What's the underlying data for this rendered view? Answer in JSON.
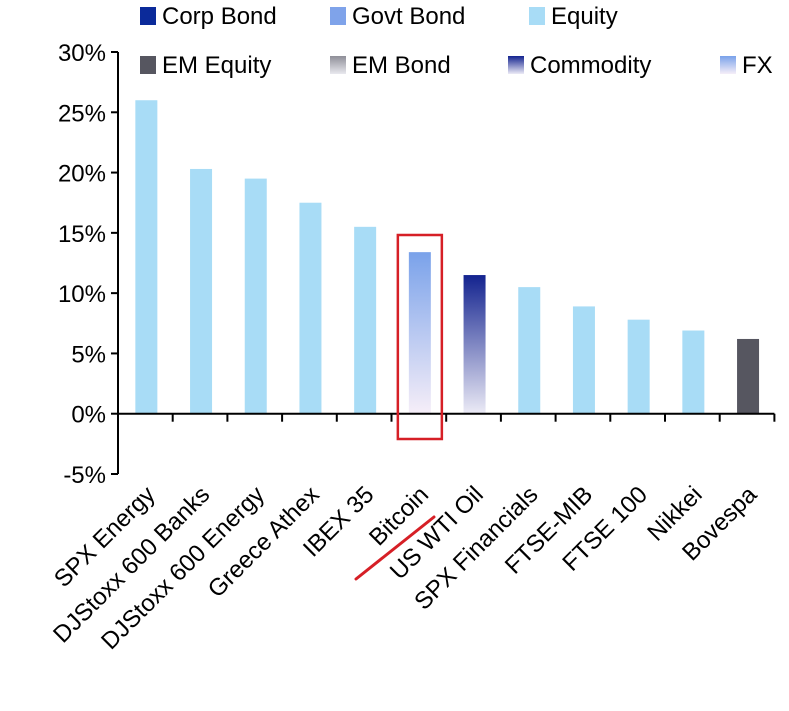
{
  "chart_data": {
    "type": "bar",
    "categories": [
      "SPX Energy",
      "DJStoxx 600 Banks",
      "DJStoxx 600 Energy",
      "Greece Athex",
      "IBEX 35",
      "Bitcoin",
      "US WTI Oil",
      "SPX Financials",
      "FTSE-MIB",
      "FTSE 100",
      "Nikkei",
      "Bovespa"
    ],
    "values": [
      26.0,
      20.3,
      19.5,
      17.5,
      15.5,
      13.4,
      11.5,
      10.5,
      8.9,
      7.8,
      6.9,
      6.2
    ],
    "asset_classes": [
      "Equity",
      "Equity",
      "Equity",
      "Equity",
      "Equity",
      "FX",
      "Commodity",
      "Equity",
      "Equity",
      "Equity",
      "Equity",
      "EM Equity"
    ],
    "ylim": [
      -5,
      30
    ],
    "yticks": [
      30,
      25,
      20,
      15,
      10,
      5,
      0,
      -5
    ],
    "ytick_format": "%",
    "legend": [
      {
        "name": "Corp Bond",
        "style": "solid",
        "color": "#0b2a9a"
      },
      {
        "name": "Govt Bond",
        "style": "solid",
        "color": "#7fa3ea"
      },
      {
        "name": "Equity",
        "style": "solid",
        "color": "#a8dcf6"
      },
      {
        "name": "EM Equity",
        "style": "solid",
        "color": "#565660"
      },
      {
        "name": "EM Bond",
        "style": "gradient",
        "color_top": "#8e8e98",
        "color_bottom": "#e8e8ee"
      },
      {
        "name": "Commodity",
        "style": "gradient",
        "color_top": "#13238f",
        "color_bottom": "#ecebf6"
      },
      {
        "name": "FX",
        "style": "gradient",
        "color_top": "#7aa2ea",
        "color_bottom": "#f6eef8"
      }
    ],
    "highlight": {
      "category": "Bitcoin",
      "box_color": "#d61f26",
      "underline_color": "#d61f26"
    },
    "legend_placement": "top",
    "grid": false
  }
}
